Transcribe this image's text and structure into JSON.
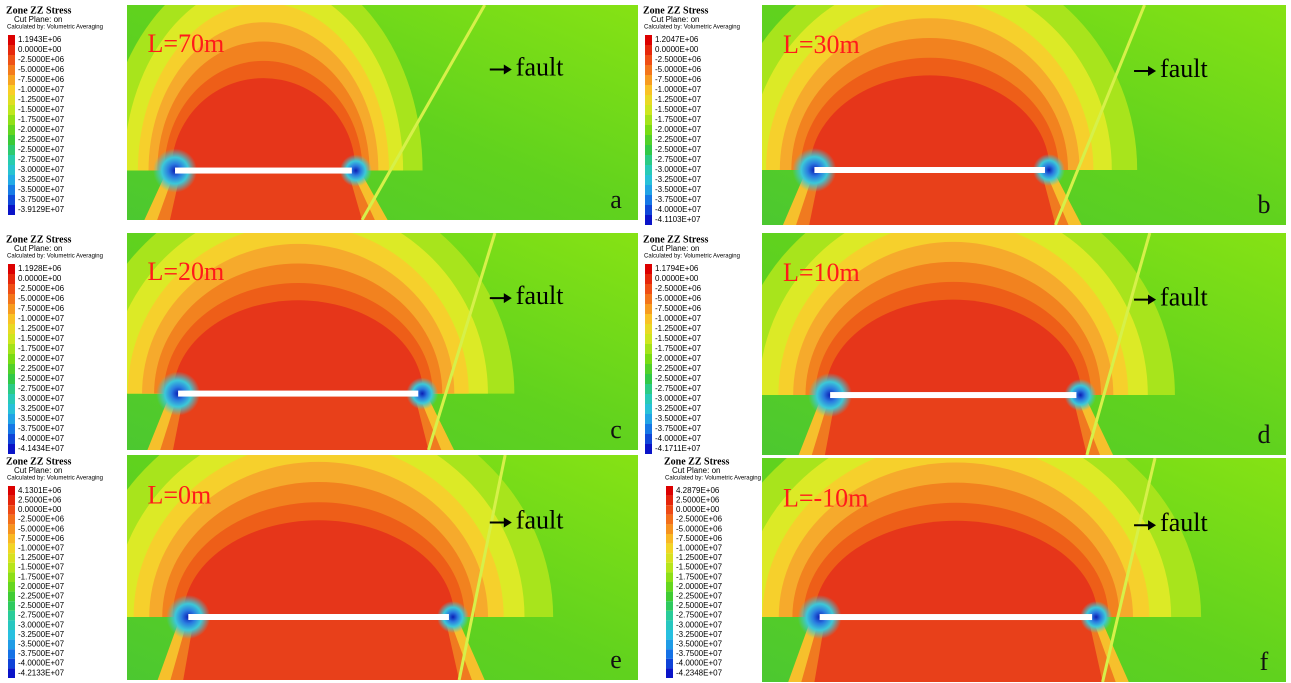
{
  "panels": [
    {
      "legend": {
        "title": "Zone ZZ Stress",
        "subtitle": "Cut Plane: on",
        "note": "Calculated by: Volumetric Averaging",
        "items": [
          "1.1943E+06",
          "0.0000E+00",
          "-2.5000E+06",
          "-5.0000E+06",
          "-7.5000E+06",
          "-1.0000E+07",
          "-1.2500E+07",
          "-1.5000E+07",
          "-1.7500E+07",
          "-2.0000E+07",
          "-2.2500E+07",
          "-2.5000E+07",
          "-2.7500E+07",
          "-3.0000E+07",
          "-3.2500E+07",
          "-3.5000E+07",
          "-3.7500E+07",
          "-3.9129E+07"
        ]
      },
      "label": "L=70m",
      "fault": "fault",
      "letter": "a"
    },
    {
      "legend": {
        "title": "Zone ZZ Stress",
        "subtitle": "Cut Plane: on",
        "note": "Calculated by: Volumetric Averaging",
        "items": [
          "1.2047E+06",
          "0.0000E+00",
          "-2.5000E+06",
          "-5.0000E+06",
          "-7.5000E+06",
          "-1.0000E+07",
          "-1.2500E+07",
          "-1.5000E+07",
          "-1.7500E+07",
          "-2.0000E+07",
          "-2.2500E+07",
          "-2.5000E+07",
          "-2.7500E+07",
          "-3.0000E+07",
          "-3.2500E+07",
          "-3.5000E+07",
          "-3.7500E+07",
          "-4.0000E+07",
          "-4.1103E+07"
        ]
      },
      "label": "L=30m",
      "fault": "fault",
      "letter": "b"
    },
    {
      "legend": {
        "title": "Zone ZZ Stress",
        "subtitle": "Cut Plane: on",
        "note": "Calculated by: Volumetric Averaging",
        "items": [
          "1.1928E+06",
          "0.0000E+00",
          "-2.5000E+06",
          "-5.0000E+06",
          "-7.5000E+06",
          "-1.0000E+07",
          "-1.2500E+07",
          "-1.5000E+07",
          "-1.7500E+07",
          "-2.0000E+07",
          "-2.2500E+07",
          "-2.5000E+07",
          "-2.7500E+07",
          "-3.0000E+07",
          "-3.2500E+07",
          "-3.5000E+07",
          "-3.7500E+07",
          "-4.0000E+07",
          "-4.1434E+07"
        ]
      },
      "label": "L=20m",
      "fault": "fault",
      "letter": "c"
    },
    {
      "legend": {
        "title": "Zone ZZ Stress",
        "subtitle": "Cut Plane: on",
        "note": "Calculated by: Volumetric Averaging",
        "items": [
          "1.1794E+06",
          "0.0000E+00",
          "-2.5000E+06",
          "-5.0000E+06",
          "-7.5000E+06",
          "-1.0000E+07",
          "-1.2500E+07",
          "-1.5000E+07",
          "-1.7500E+07",
          "-2.0000E+07",
          "-2.2500E+07",
          "-2.5000E+07",
          "-2.7500E+07",
          "-3.0000E+07",
          "-3.2500E+07",
          "-3.5000E+07",
          "-3.7500E+07",
          "-4.0000E+07",
          "-4.1711E+07"
        ]
      },
      "label": "L=10m",
      "fault": "fault",
      "letter": "d"
    },
    {
      "legend": {
        "title": "Zone ZZ Stress",
        "subtitle": "Cut Plane: on",
        "note": "Calculated by: Volumetric Averaging",
        "items": [
          "4.1301E+06",
          "2.5000E+06",
          "0.0000E+00",
          "-2.5000E+06",
          "-5.0000E+06",
          "-7.5000E+06",
          "-1.0000E+07",
          "-1.2500E+07",
          "-1.5000E+07",
          "-1.7500E+07",
          "-2.0000E+07",
          "-2.2500E+07",
          "-2.5000E+07",
          "-2.7500E+07",
          "-3.0000E+07",
          "-3.2500E+07",
          "-3.5000E+07",
          "-3.7500E+07",
          "-4.0000E+07",
          "-4.2133E+07"
        ]
      },
      "label": "L=0m",
      "fault": "fault",
      "letter": "e"
    },
    {
      "legend": {
        "title": "Zone ZZ Stress",
        "subtitle": "Cut Plane: on",
        "note": "Calculated by: Volumetric Averaging",
        "items": [
          "4.2879E+06",
          "2.5000E+06",
          "0.0000E+00",
          "-2.5000E+06",
          "-5.0000E+06",
          "-7.5000E+06",
          "-1.0000E+07",
          "-1.2500E+07",
          "-1.5000E+07",
          "-1.7500E+07",
          "-2.0000E+07",
          "-2.2500E+07",
          "-2.5000E+07",
          "-2.7500E+07",
          "-3.0000E+07",
          "-3.2500E+07",
          "-3.5000E+07",
          "-3.7500E+07",
          "-4.0000E+07",
          "-4.2348E+07"
        ]
      },
      "label": "L=-10m",
      "fault": "fault",
      "letter": "f"
    }
  ]
}
